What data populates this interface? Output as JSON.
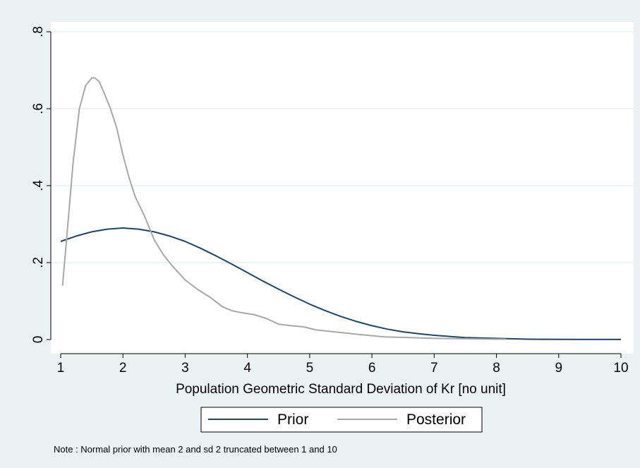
{
  "chart_data": {
    "type": "line",
    "xlabel": "Population Geometric Standard Deviation of Kr [no unit]",
    "ylabel": "",
    "xlim": [
      1,
      10
    ],
    "ylim": [
      0,
      0.8
    ],
    "x_ticks": [
      1,
      2,
      3,
      4,
      5,
      6,
      7,
      8,
      9,
      10
    ],
    "x_tick_labels": [
      "1",
      "2",
      "3",
      "4",
      "5",
      "6",
      "7",
      "8",
      "9",
      "10"
    ],
    "y_ticks": [
      0,
      0.2,
      0.4,
      0.6,
      0.8
    ],
    "y_tick_labels": [
      "0",
      ".2",
      ".4",
      ".6",
      ".8"
    ],
    "grid": true,
    "legend_position": "bottom",
    "series": [
      {
        "name": "Prior",
        "color": "#1a476f",
        "x": [
          1,
          1.25,
          1.5,
          1.75,
          2,
          2.25,
          2.5,
          2.75,
          3,
          3.25,
          3.5,
          3.75,
          4,
          4.25,
          4.5,
          4.75,
          5,
          5.25,
          5.5,
          5.75,
          6,
          6.25,
          6.5,
          6.75,
          7,
          7.5,
          8,
          8.5,
          9,
          9.5,
          10
        ],
        "y": [
          0.255,
          0.269,
          0.28,
          0.287,
          0.29,
          0.287,
          0.28,
          0.269,
          0.255,
          0.237,
          0.217,
          0.196,
          0.174,
          0.152,
          0.131,
          0.111,
          0.092,
          0.075,
          0.06,
          0.047,
          0.036,
          0.027,
          0.02,
          0.015,
          0.011,
          0.005,
          0.003,
          0.001,
          0.0005,
          0.0002,
          0.0001
        ]
      },
      {
        "name": "Posterior",
        "color": "#a8a8a8",
        "x": [
          1.03,
          1.1,
          1.2,
          1.3,
          1.4,
          1.5,
          1.55,
          1.62,
          1.7,
          1.8,
          1.9,
          2.0,
          2.1,
          2.2,
          2.35,
          2.5,
          2.65,
          2.8,
          3.0,
          3.2,
          3.4,
          3.6,
          3.75,
          3.9,
          4.1,
          4.3,
          4.5,
          4.7,
          4.9,
          5.1,
          5.4,
          5.8,
          6.2,
          6.6,
          7.0,
          7.5,
          8.0,
          8.15
        ],
        "y": [
          0.14,
          0.27,
          0.46,
          0.6,
          0.66,
          0.68,
          0.68,
          0.67,
          0.64,
          0.6,
          0.55,
          0.48,
          0.42,
          0.37,
          0.32,
          0.26,
          0.22,
          0.19,
          0.155,
          0.13,
          0.11,
          0.085,
          0.075,
          0.07,
          0.065,
          0.055,
          0.04,
          0.036,
          0.033,
          0.025,
          0.02,
          0.013,
          0.007,
          0.005,
          0.003,
          0.002,
          0.001,
          0.001
        ]
      }
    ],
    "note": "Note : Normal prior with mean 2 and sd 2 truncated between 1 and 10"
  }
}
